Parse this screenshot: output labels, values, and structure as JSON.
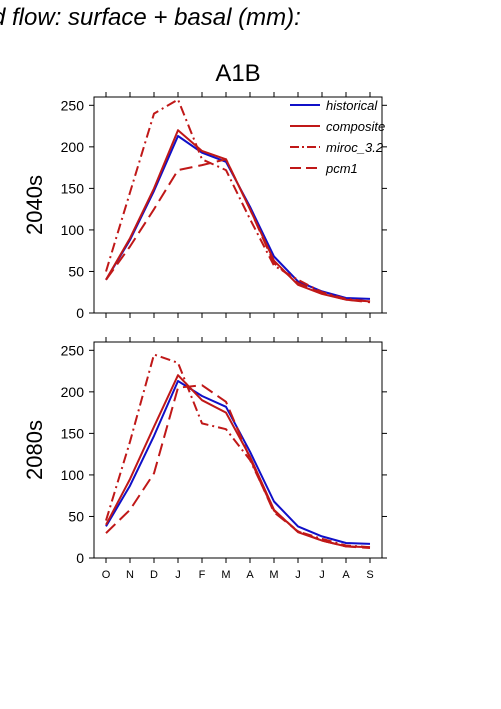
{
  "page": {
    "title": "d flow: surface + basal (mm):"
  },
  "figure": {
    "scenario_title": "A1B"
  },
  "colors": {
    "historical": "#1010c8",
    "scenario": "#c01818",
    "axis": "#000000"
  },
  "chart_data": [
    {
      "type": "line",
      "title": "A1B",
      "ylabel": "2040s",
      "xlabel": "",
      "categories": [
        "O",
        "N",
        "D",
        "J",
        "F",
        "M",
        "A",
        "M",
        "J",
        "J",
        "A",
        "S"
      ],
      "ylim": [
        0,
        260
      ],
      "yticks": [
        0,
        50,
        100,
        150,
        200,
        250
      ],
      "grid": false,
      "legend": {
        "position": "top-right",
        "entries": [
          "historical",
          "composite",
          "miroc_3.2",
          "pcm1"
        ]
      },
      "series": [
        {
          "name": "historical",
          "style": "solid",
          "color": "#1010c8",
          "values": [
            40,
            88,
            147,
            213,
            193,
            182,
            128,
            68,
            38,
            26,
            18,
            17
          ]
        },
        {
          "name": "composite",
          "style": "solid",
          "color": "#c01818",
          "values": [
            40,
            90,
            150,
            220,
            195,
            185,
            125,
            63,
            34,
            23,
            16,
            14
          ]
        },
        {
          "name": "miroc_3.2",
          "style": "dashdot",
          "color": "#c01818",
          "values": [
            50,
            145,
            240,
            257,
            185,
            172,
            113,
            57,
            40,
            25,
            17,
            14
          ]
        },
        {
          "name": "pcm1",
          "style": "dash",
          "color": "#c01818",
          "values": [
            40,
            80,
            125,
            172,
            178,
            185,
            125,
            60,
            36,
            24,
            16,
            13
          ]
        }
      ]
    },
    {
      "type": "line",
      "title": "",
      "ylabel": "2080s",
      "xlabel": "",
      "categories": [
        "O",
        "N",
        "D",
        "J",
        "F",
        "M",
        "A",
        "M",
        "J",
        "J",
        "A",
        "S"
      ],
      "ylim": [
        0,
        260
      ],
      "yticks": [
        0,
        50,
        100,
        150,
        200,
        250
      ],
      "grid": false,
      "series": [
        {
          "name": "historical",
          "style": "solid",
          "color": "#1010c8",
          "values": [
            38,
            87,
            147,
            213,
            195,
            182,
            128,
            68,
            38,
            26,
            18,
            17
          ]
        },
        {
          "name": "composite",
          "style": "solid",
          "color": "#c01818",
          "values": [
            40,
            95,
            158,
            220,
            190,
            175,
            122,
            58,
            31,
            21,
            14,
            13
          ]
        },
        {
          "name": "miroc_3.2",
          "style": "dashdot",
          "color": "#c01818",
          "values": [
            45,
            140,
            245,
            235,
            162,
            155,
            118,
            57,
            32,
            23,
            15,
            13
          ]
        },
        {
          "name": "pcm1",
          "style": "dash",
          "color": "#c01818",
          "values": [
            30,
            58,
            102,
            205,
            208,
            188,
            120,
            55,
            32,
            21,
            14,
            12
          ]
        }
      ]
    }
  ]
}
